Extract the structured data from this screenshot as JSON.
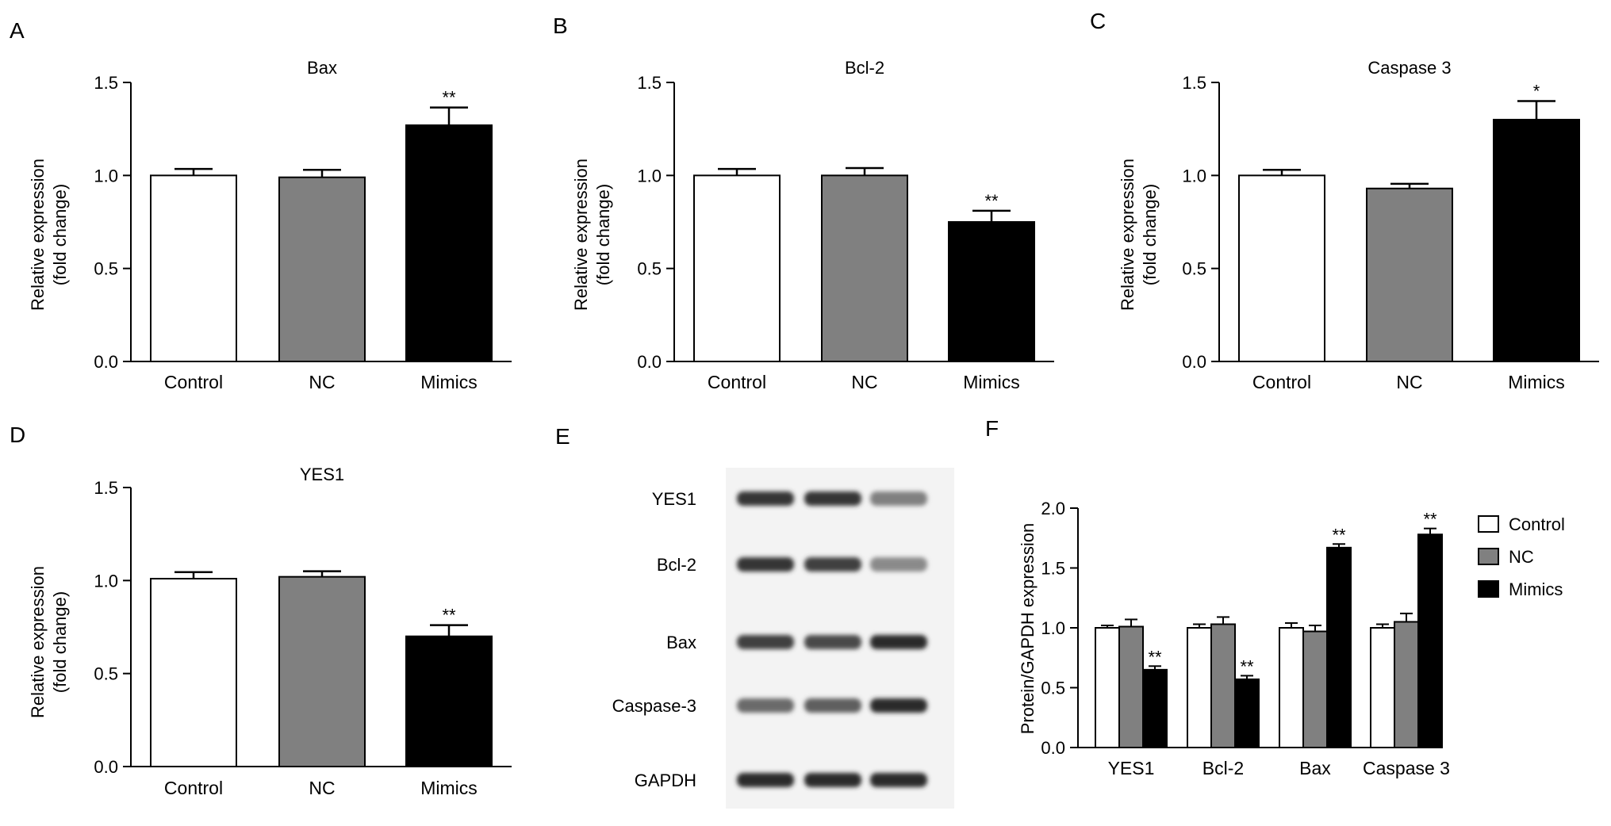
{
  "colors": {
    "control": "#ffffff",
    "nc": "#808080",
    "mimics": "#000000",
    "axis": "#000000"
  },
  "panel_letters": {
    "a": "A",
    "b": "B",
    "c": "C",
    "d": "D",
    "e": "E",
    "f": "F"
  },
  "chart_data": [
    {
      "panel": "A",
      "type": "bar",
      "title": "Bax",
      "ylabel": [
        "Relative expression",
        "(fold change)"
      ],
      "categories": [
        "Control",
        "NC",
        "Mimics"
      ],
      "values": [
        1.0,
        0.99,
        1.27
      ],
      "errors": [
        0.035,
        0.04,
        0.095
      ],
      "significance": [
        "",
        "",
        "**"
      ],
      "ylim": [
        0,
        1.5
      ],
      "yticks": [
        "0.0",
        "0.5",
        "1.0",
        "1.5"
      ],
      "grid": false
    },
    {
      "panel": "B",
      "type": "bar",
      "title": "Bcl-2",
      "ylabel": [
        "Relative expression",
        "(fold change)"
      ],
      "categories": [
        "Control",
        "NC",
        "Mimics"
      ],
      "values": [
        1.0,
        1.0,
        0.75
      ],
      "errors": [
        0.035,
        0.04,
        0.06
      ],
      "significance": [
        "",
        "",
        "**"
      ],
      "ylim": [
        0,
        1.5
      ],
      "yticks": [
        "0.0",
        "0.5",
        "1.0",
        "1.5"
      ],
      "grid": false
    },
    {
      "panel": "C",
      "type": "bar",
      "title": "Caspase 3",
      "ylabel": [
        "Relative expression",
        "(fold change)"
      ],
      "categories": [
        "Control",
        "NC",
        "Mimics"
      ],
      "values": [
        1.0,
        0.93,
        1.3
      ],
      "errors": [
        0.03,
        0.025,
        0.1
      ],
      "significance": [
        "",
        "",
        "*"
      ],
      "ylim": [
        0,
        1.5
      ],
      "yticks": [
        "0.0",
        "0.5",
        "1.0",
        "1.5"
      ],
      "grid": false
    },
    {
      "panel": "D",
      "type": "bar",
      "title": "YES1",
      "ylabel": [
        "Relative expression",
        "(fold change)"
      ],
      "categories": [
        "Control",
        "NC",
        "Mimics"
      ],
      "values": [
        1.01,
        1.02,
        0.7
      ],
      "errors": [
        0.035,
        0.03,
        0.06
      ],
      "significance": [
        "",
        "",
        "**"
      ],
      "ylim": [
        0,
        1.5
      ],
      "yticks": [
        "0.0",
        "0.5",
        "1.0",
        "1.5"
      ],
      "grid": false
    },
    {
      "panel": "F",
      "type": "bar",
      "title": "",
      "ylabel": [
        "Protein/GAPDH expression"
      ],
      "categories": [
        "YES1",
        "Bcl-2",
        "Bax",
        "Caspase 3"
      ],
      "series": [
        {
          "name": "Control",
          "values": [
            1.0,
            1.0,
            1.0,
            1.0
          ],
          "errors": [
            0.02,
            0.03,
            0.04,
            0.03
          ],
          "significance": [
            "",
            "",
            "",
            ""
          ]
        },
        {
          "name": "NC",
          "values": [
            1.01,
            1.03,
            0.97,
            1.05
          ],
          "errors": [
            0.06,
            0.06,
            0.05,
            0.07
          ],
          "significance": [
            "",
            "",
            "",
            ""
          ]
        },
        {
          "name": "Mimics",
          "values": [
            0.65,
            0.57,
            1.67,
            1.78
          ],
          "errors": [
            0.03,
            0.03,
            0.03,
            0.05
          ],
          "significance": [
            "**",
            "**",
            "**",
            "**"
          ]
        }
      ],
      "ylim": [
        0,
        2.0
      ],
      "yticks": [
        "0.0",
        "0.5",
        "1.0",
        "1.5",
        "2.0"
      ],
      "legend": "right",
      "grid": false
    }
  ],
  "western_blot": {
    "panel": "E",
    "bands": [
      {
        "label": "YES1",
        "intensity": [
          0.85,
          0.85,
          0.5
        ]
      },
      {
        "label": "Bcl-2",
        "intensity": [
          0.85,
          0.8,
          0.45
        ]
      },
      {
        "label": "Bax",
        "intensity": [
          0.8,
          0.75,
          0.9
        ]
      },
      {
        "label": "Caspase-3",
        "intensity": [
          0.6,
          0.65,
          0.9
        ]
      },
      {
        "label": "GAPDH",
        "intensity": [
          0.9,
          0.9,
          0.9
        ]
      }
    ]
  }
}
